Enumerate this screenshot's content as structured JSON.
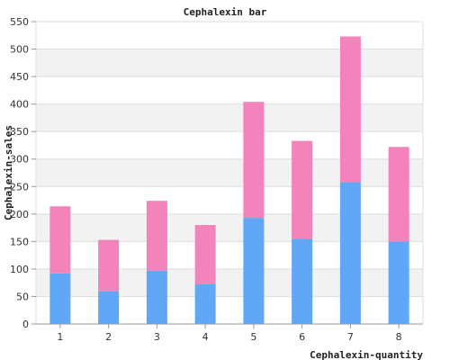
{
  "chart_data": {
    "type": "bar",
    "stacked": true,
    "title": "Cephalexin bar",
    "xlabel": "Cephalexin-quantity",
    "ylabel": "Cephalexin-sales",
    "categories": [
      "1",
      "2",
      "3",
      "4",
      "5",
      "6",
      "7",
      "8"
    ],
    "ylim": [
      0,
      550
    ],
    "yticks": [
      0,
      50,
      100,
      150,
      200,
      250,
      300,
      350,
      400,
      450,
      500,
      550
    ],
    "grid": "horizontal bands",
    "legend": "none",
    "series": [
      {
        "values": [
          92,
          60,
          97,
          72,
          193,
          155,
          258,
          150
        ],
        "color": "#60a8f5"
      },
      {
        "values": [
          122,
          93,
          127,
          108,
          211,
          178,
          265,
          172
        ],
        "color": "#f283bb"
      }
    ]
  }
}
